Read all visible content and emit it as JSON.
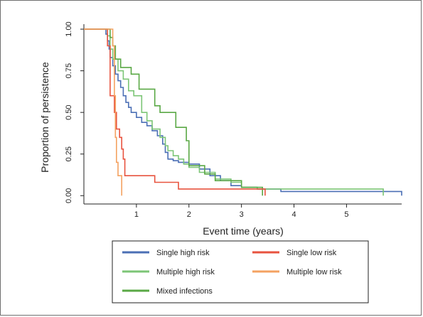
{
  "chart_data": {
    "type": "line",
    "subtype": "step",
    "title": "",
    "xlabel": "Event time (years)",
    "ylabel": "Proportion of persistence",
    "xlim": [
      0,
      6.05
    ],
    "ylim": [
      -0.05,
      1.03
    ],
    "xticks": [
      "1",
      "2",
      "3",
      "4",
      "5"
    ],
    "yticks": [
      "0.00",
      "0.25",
      "0.50",
      "0.75",
      "1.00"
    ],
    "grid": false,
    "legend_position": "bottom",
    "series": [
      {
        "name": "Single high risk",
        "color": "#4b6fb5",
        "points": [
          [
            0,
            1.0
          ],
          [
            0.38,
            1.0
          ],
          [
            0.42,
            0.97
          ],
          [
            0.45,
            0.93
          ],
          [
            0.48,
            0.88
          ],
          [
            0.5,
            0.83
          ],
          [
            0.55,
            0.78
          ],
          [
            0.6,
            0.73
          ],
          [
            0.65,
            0.69
          ],
          [
            0.7,
            0.65
          ],
          [
            0.75,
            0.6
          ],
          [
            0.8,
            0.56
          ],
          [
            0.85,
            0.53
          ],
          [
            0.9,
            0.5
          ],
          [
            1.0,
            0.47
          ],
          [
            1.1,
            0.44
          ],
          [
            1.2,
            0.42
          ],
          [
            1.3,
            0.39
          ],
          [
            1.4,
            0.36
          ],
          [
            1.5,
            0.31
          ],
          [
            1.55,
            0.26
          ],
          [
            1.6,
            0.22
          ],
          [
            1.7,
            0.21
          ],
          [
            1.8,
            0.2
          ],
          [
            2.0,
            0.19
          ],
          [
            2.2,
            0.16
          ],
          [
            2.4,
            0.12
          ],
          [
            2.6,
            0.09
          ],
          [
            2.8,
            0.06
          ],
          [
            3.0,
            0.05
          ],
          [
            3.3,
            0.04
          ],
          [
            3.7,
            0.04
          ],
          [
            3.75,
            0.025
          ],
          [
            5.7,
            0.025
          ],
          [
            6.05,
            0.0
          ]
        ]
      },
      {
        "name": "Multiple high risk",
        "color": "#7cc576",
        "points": [
          [
            0,
            1.0
          ],
          [
            0.4,
            1.0
          ],
          [
            0.45,
            0.96
          ],
          [
            0.5,
            0.88
          ],
          [
            0.55,
            0.82
          ],
          [
            0.65,
            0.75
          ],
          [
            0.75,
            0.7
          ],
          [
            0.85,
            0.63
          ],
          [
            0.95,
            0.6
          ],
          [
            1.1,
            0.5
          ],
          [
            1.2,
            0.45
          ],
          [
            1.3,
            0.4
          ],
          [
            1.45,
            0.35
          ],
          [
            1.55,
            0.3
          ],
          [
            1.6,
            0.27
          ],
          [
            1.7,
            0.24
          ],
          [
            1.8,
            0.22
          ],
          [
            1.9,
            0.19
          ],
          [
            2.0,
            0.17
          ],
          [
            2.2,
            0.14
          ],
          [
            2.5,
            0.1
          ],
          [
            2.8,
            0.08
          ],
          [
            3.0,
            0.05
          ],
          [
            3.3,
            0.04
          ],
          [
            5.7,
            0.04
          ],
          [
            5.7,
            0.0
          ]
        ]
      },
      {
        "name": "Mixed infections",
        "color": "#5aa845",
        "points": [
          [
            0,
            1.0
          ],
          [
            0.45,
            1.0
          ],
          [
            0.5,
            0.95
          ],
          [
            0.55,
            0.9
          ],
          [
            0.6,
            0.82
          ],
          [
            0.7,
            0.77
          ],
          [
            0.9,
            0.77
          ],
          [
            0.9,
            0.73
          ],
          [
            1.05,
            0.73
          ],
          [
            1.05,
            0.64
          ],
          [
            1.35,
            0.64
          ],
          [
            1.35,
            0.54
          ],
          [
            1.45,
            0.54
          ],
          [
            1.45,
            0.5
          ],
          [
            1.75,
            0.5
          ],
          [
            1.75,
            0.41
          ],
          [
            1.95,
            0.41
          ],
          [
            1.95,
            0.33
          ],
          [
            2.0,
            0.33
          ],
          [
            2.0,
            0.18
          ],
          [
            2.3,
            0.18
          ],
          [
            2.3,
            0.13
          ],
          [
            2.5,
            0.13
          ],
          [
            2.5,
            0.09
          ],
          [
            3.0,
            0.09
          ],
          [
            3.0,
            0.05
          ],
          [
            3.4,
            0.05
          ],
          [
            3.4,
            0.0
          ]
        ]
      },
      {
        "name": "Single low risk",
        "color": "#e8533f",
        "points": [
          [
            0,
            1.0
          ],
          [
            0.4,
            1.0
          ],
          [
            0.45,
            0.9
          ],
          [
            0.5,
            0.6
          ],
          [
            0.58,
            0.5
          ],
          [
            0.62,
            0.4
          ],
          [
            0.68,
            0.35
          ],
          [
            0.72,
            0.28
          ],
          [
            0.75,
            0.22
          ],
          [
            0.78,
            0.12
          ],
          [
            1.35,
            0.12
          ],
          [
            1.35,
            0.08
          ],
          [
            1.8,
            0.08
          ],
          [
            1.8,
            0.04
          ],
          [
            3.45,
            0.04
          ],
          [
            3.45,
            0.0
          ]
        ]
      },
      {
        "name": "Multiple low risk",
        "color": "#f4a261",
        "points": [
          [
            0,
            1.0
          ],
          [
            0.5,
            1.0
          ],
          [
            0.55,
            0.9
          ],
          [
            0.58,
            0.6
          ],
          [
            0.6,
            0.35
          ],
          [
            0.62,
            0.2
          ],
          [
            0.65,
            0.12
          ],
          [
            0.7,
            0.12
          ],
          [
            0.72,
            0.0
          ]
        ]
      }
    ],
    "legend": {
      "columns": [
        [
          "Single high risk",
          "Multiple high risk",
          "Mixed infections"
        ],
        [
          "Single low risk",
          "Multiple low risk"
        ]
      ]
    }
  }
}
